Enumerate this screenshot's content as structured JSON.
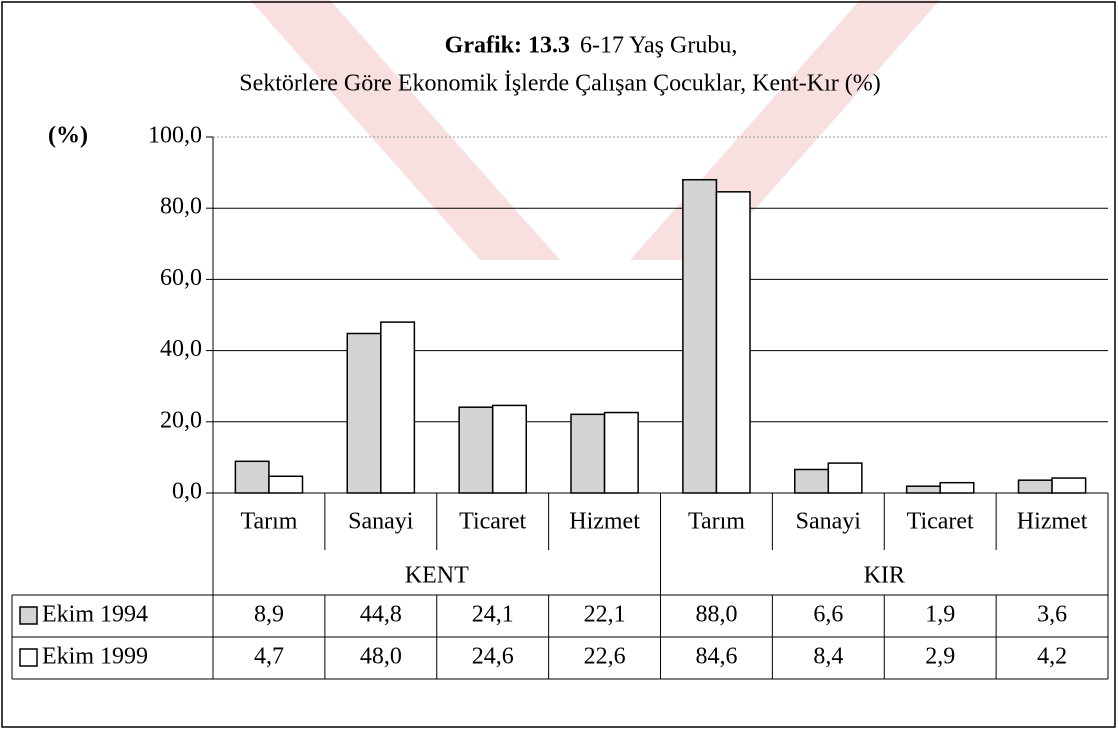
{
  "chart_data": {
    "type": "bar",
    "title_bold": "Grafik: 13.3",
    "title": "6-17 Yaş Grubu,",
    "subtitle": "Sektörlere Göre Ekonomik İşlerde Çalışan Çocuklar, Kent-Kır  (%)",
    "y_label": "(%)",
    "groups": [
      {
        "name": "KENT",
        "categories": [
          "Tarım",
          "Sanayi",
          "Ticaret",
          "Hizmet"
        ]
      },
      {
        "name": "KIR",
        "categories": [
          "Tarım",
          "Sanayi",
          "Ticaret",
          "Hizmet"
        ]
      }
    ],
    "series": [
      {
        "name": "Ekim 1994",
        "color": "#d4d4d4",
        "values": [
          8.9,
          44.8,
          24.1,
          22.1,
          88.0,
          6.6,
          1.9,
          3.6
        ],
        "value_labels": [
          "8,9",
          "44,8",
          "24,1",
          "22,1",
          "88,0",
          "6,6",
          "1,9",
          "3,6"
        ]
      },
      {
        "name": "Ekim 1999",
        "color": "#ffffff",
        "values": [
          4.7,
          48.0,
          24.6,
          22.6,
          84.6,
          8.4,
          2.9,
          4.2
        ],
        "value_labels": [
          "4,7",
          "48,0",
          "24,6",
          "22,6",
          "84,6",
          "8,4",
          "2,9",
          "4,2"
        ]
      }
    ],
    "ylim": [
      0,
      100
    ],
    "yticks": [
      {
        "value": 0,
        "label": "0,0"
      },
      {
        "value": 20,
        "label": "20,0"
      },
      {
        "value": 40,
        "label": "40,0"
      },
      {
        "value": 60,
        "label": "60,0"
      },
      {
        "value": 80,
        "label": "80,0"
      },
      {
        "value": 100,
        "label": "100,0"
      }
    ],
    "grid": true
  }
}
